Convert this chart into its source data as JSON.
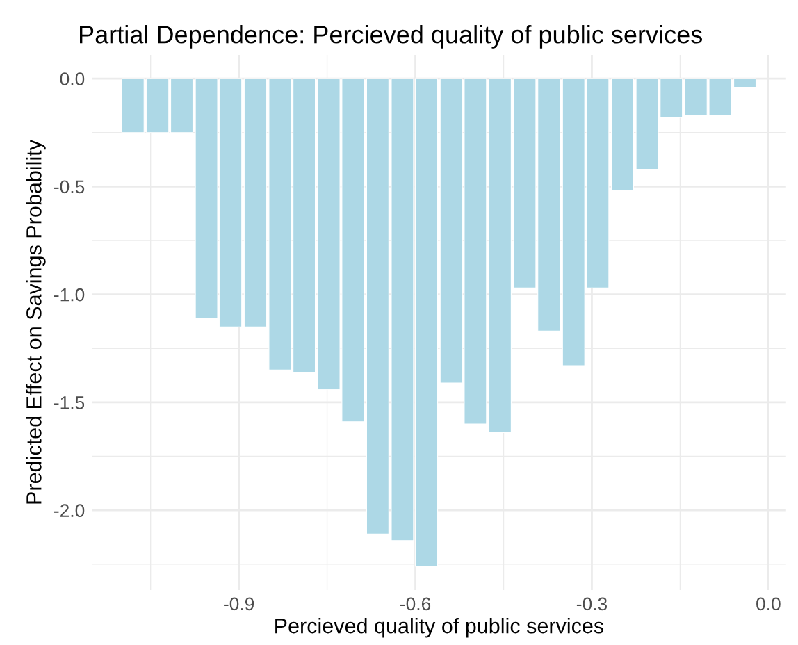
{
  "chart_data": {
    "type": "bar",
    "title": "Partial Dependence: Percieved quality of public services",
    "xlabel": "Percieved quality of public services",
    "ylabel": "Predicted Effect on Savings Probability",
    "x": [
      -1.08,
      -1.038,
      -0.997,
      -0.955,
      -0.914,
      -0.872,
      -0.83,
      -0.789,
      -0.747,
      -0.706,
      -0.664,
      -0.622,
      -0.581,
      -0.539,
      -0.498,
      -0.456,
      -0.414,
      -0.373,
      -0.331,
      -0.29,
      -0.248,
      -0.206,
      -0.165,
      -0.123,
      -0.082,
      -0.04
    ],
    "series": [
      {
        "color": "#add8e6",
        "values": [
          -0.25,
          -0.25,
          -0.25,
          -1.11,
          -1.15,
          -1.15,
          -1.35,
          -1.36,
          -1.44,
          -1.59,
          -2.11,
          -2.14,
          -2.26,
          -1.41,
          -1.6,
          -1.64,
          -0.97,
          -1.17,
          -1.33,
          -0.97,
          -0.52,
          -0.42,
          -0.18,
          -0.17,
          -0.17,
          -0.04
        ]
      }
    ],
    "xlim": [
      -1.15,
      0.03
    ],
    "ylim": [
      -2.37,
      0.11
    ],
    "xticks": [
      -0.9,
      -0.6,
      -0.3,
      {
        "value": 0,
        "label": "0.0"
      }
    ],
    "yticks": [
      {
        "value": 0,
        "label": "0.0"
      },
      -0.5,
      {
        "value": -1,
        "label": "-1.0"
      },
      -1.5,
      {
        "value": -2,
        "label": "-2.0"
      }
    ],
    "grid": true,
    "legend": false
  }
}
